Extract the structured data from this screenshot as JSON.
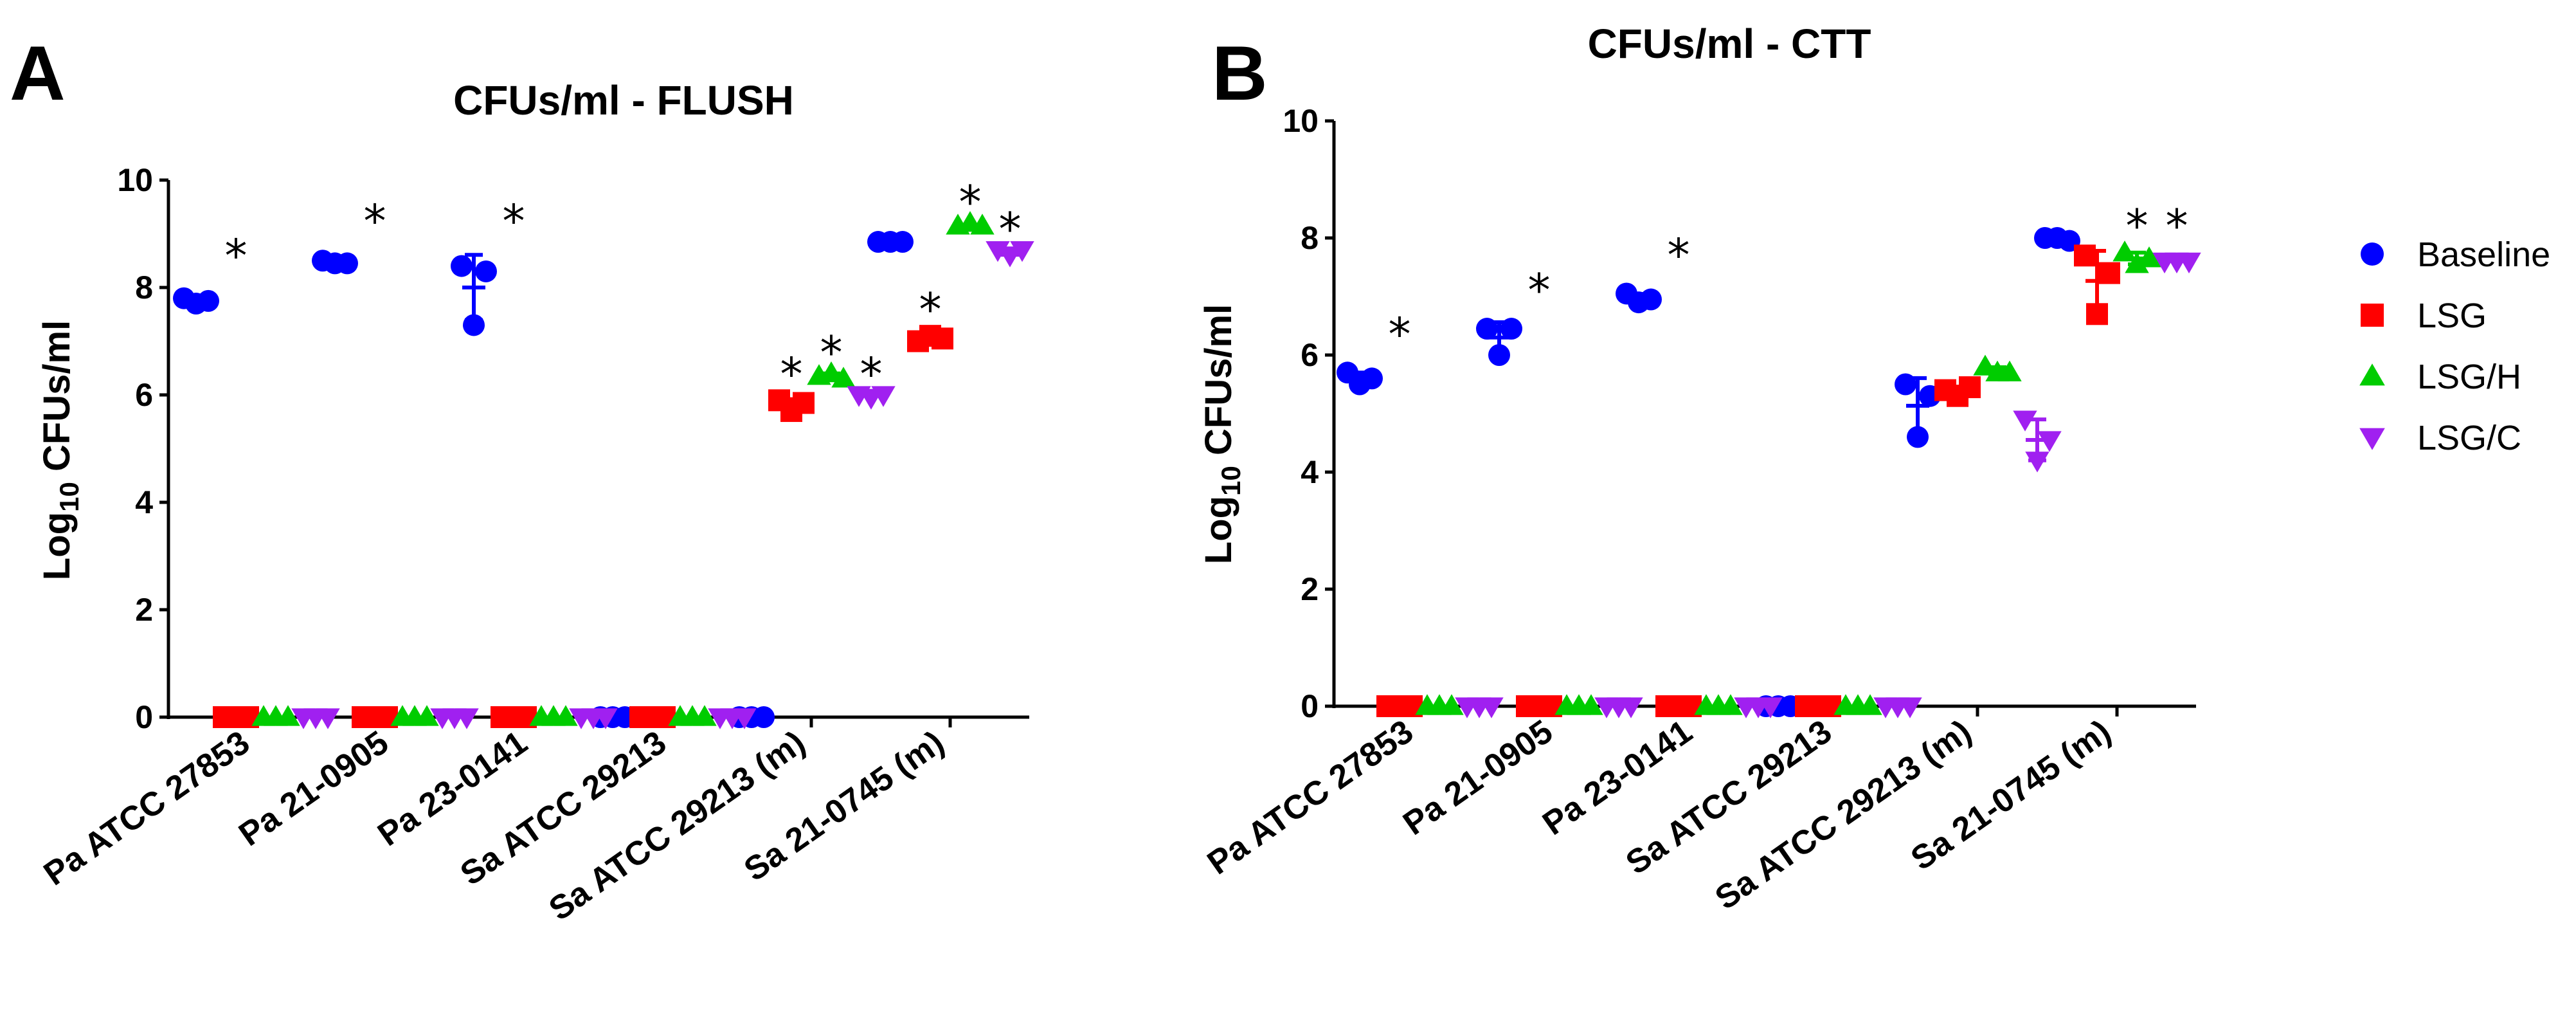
{
  "panels": [
    {
      "letter": "A",
      "title": "CFUs/ml - FLUSH"
    },
    {
      "letter": "B",
      "title": "CFUs/ml - CTT"
    }
  ],
  "legend": [
    {
      "name": "Baseline",
      "color": "#0000ff",
      "marker": "circle"
    },
    {
      "name": "LSG",
      "color": "#ff0000",
      "marker": "square"
    },
    {
      "name": "LSG/H",
      "color": "#00cc00",
      "marker": "triangle-up"
    },
    {
      "name": "LSG/C",
      "color": "#a020f0",
      "marker": "triangle-down"
    }
  ],
  "chart_data": [
    {
      "type": "scatter",
      "title": "CFUs/ml - FLUSH",
      "ylabel_base": "Log",
      "ylabel_sub": "10",
      "ylabel_rest": " CFUs/ml",
      "ylim": [
        0,
        10
      ],
      "yticks": [
        "0",
        "2",
        "4",
        "6",
        "8",
        "10"
      ],
      "categories": [
        "Pa ATCC 27853",
        "Pa 21-0905",
        "Pa 23-0141",
        "Sa ATCC 29213",
        "Sa ATCC 29213 (m)",
        "Sa 21-0745 (m)"
      ],
      "series": [
        {
          "name": "Baseline",
          "points": [
            [
              7.8,
              7.7,
              7.75
            ],
            [
              8.5,
              8.45,
              8.45
            ],
            [
              8.4,
              7.3,
              8.3
            ],
            [
              0,
              0,
              0
            ],
            [
              0,
              0,
              0
            ],
            [
              8.85,
              8.85,
              8.85
            ]
          ]
        },
        {
          "name": "LSG",
          "points": [
            [
              0,
              0,
              0
            ],
            [
              0,
              0,
              0
            ],
            [
              0,
              0,
              0
            ],
            [
              0,
              0,
              0
            ],
            [
              5.9,
              5.7,
              5.85
            ],
            [
              7.0,
              7.1,
              7.05
            ]
          ]
        },
        {
          "name": "LSG/H",
          "points": [
            [
              0,
              0,
              0
            ],
            [
              0,
              0,
              0
            ],
            [
              0,
              0,
              0
            ],
            [
              0,
              0,
              0
            ],
            [
              6.35,
              6.4,
              6.3
            ],
            [
              9.15,
              9.2,
              9.15
            ]
          ]
        },
        {
          "name": "LSG/C",
          "points": [
            [
              0,
              0,
              0
            ],
            [
              0,
              0,
              0
            ],
            [
              0,
              0,
              0
            ],
            [
              0,
              0,
              0
            ],
            [
              6.0,
              5.95,
              6.0
            ],
            [
              8.7,
              8.6,
              8.7
            ]
          ]
        }
      ],
      "annotations": [
        {
          "text": "*",
          "category": 0,
          "series": "LSG",
          "y": 8.8
        },
        {
          "text": "*",
          "category": 1,
          "series": "LSG",
          "y": 9.45
        },
        {
          "text": "*",
          "category": 2,
          "series": "LSG",
          "y": 9.45
        },
        {
          "text": "*",
          "category": 4,
          "series": "LSG",
          "y": 6.6
        },
        {
          "text": "*",
          "category": 4,
          "series": "LSG/H",
          "y": 7.0
        },
        {
          "text": "*",
          "category": 4,
          "series": "LSG/C",
          "y": 6.6
        },
        {
          "text": "*",
          "category": 5,
          "series": "LSG",
          "y": 7.8
        },
        {
          "text": "*",
          "category": 5,
          "series": "LSG/H",
          "y": 9.8
        },
        {
          "text": "*",
          "category": 5,
          "series": "LSG/C",
          "y": 9.3
        }
      ]
    },
    {
      "type": "scatter",
      "title": "CFUs/ml - CTT",
      "ylabel_base": "Log",
      "ylabel_sub": "10",
      "ylabel_rest": " CFUs/ml",
      "ylim": [
        0,
        10
      ],
      "yticks": [
        "0",
        "2",
        "4",
        "6",
        "8",
        "10"
      ],
      "categories": [
        "Pa ATCC 27853",
        "Pa 21-0905",
        "Pa 23-0141",
        "Sa ATCC 29213",
        "Sa ATCC 29213 (m)",
        "Sa 21-0745 (m)"
      ],
      "series": [
        {
          "name": "Baseline",
          "points": [
            [
              5.7,
              5.5,
              5.6
            ],
            [
              6.45,
              6.0,
              6.45
            ],
            [
              7.05,
              6.9,
              6.95
            ],
            [
              0,
              0,
              0
            ],
            [
              5.5,
              4.6,
              5.3
            ],
            [
              8.0,
              8.0,
              7.95
            ]
          ]
        },
        {
          "name": "LSG",
          "points": [
            [
              0,
              0,
              0
            ],
            [
              0,
              0,
              0
            ],
            [
              0,
              0,
              0
            ],
            [
              0,
              0,
              0
            ],
            [
              5.4,
              5.3,
              5.45
            ],
            [
              7.7,
              6.7,
              7.4
            ]
          ]
        },
        {
          "name": "LSG/H",
          "points": [
            [
              0,
              0,
              0
            ],
            [
              0,
              0,
              0
            ],
            [
              0,
              0,
              0
            ],
            [
              0,
              0,
              0
            ],
            [
              5.8,
              5.7,
              5.7
            ],
            [
              7.75,
              7.55,
              7.65
            ]
          ]
        },
        {
          "name": "LSG/C",
          "points": [
            [
              0,
              0,
              0
            ],
            [
              0,
              0,
              0
            ],
            [
              0,
              0,
              0
            ],
            [
              0,
              0,
              0
            ],
            [
              4.9,
              4.2,
              4.55
            ],
            [
              7.6,
              7.6,
              7.6
            ]
          ]
        }
      ],
      "annotations": [
        {
          "text": "*",
          "category": 0,
          "series": "LSG",
          "y": 6.55
        },
        {
          "text": "*",
          "category": 1,
          "series": "LSG",
          "y": 7.3
        },
        {
          "text": "*",
          "category": 2,
          "series": "LSG",
          "y": 7.9
        },
        {
          "text": "*",
          "category": 5,
          "series": "LSG/H",
          "y": 8.4
        },
        {
          "text": "*",
          "category": 5,
          "series": "LSG/C",
          "y": 8.4
        }
      ]
    }
  ]
}
